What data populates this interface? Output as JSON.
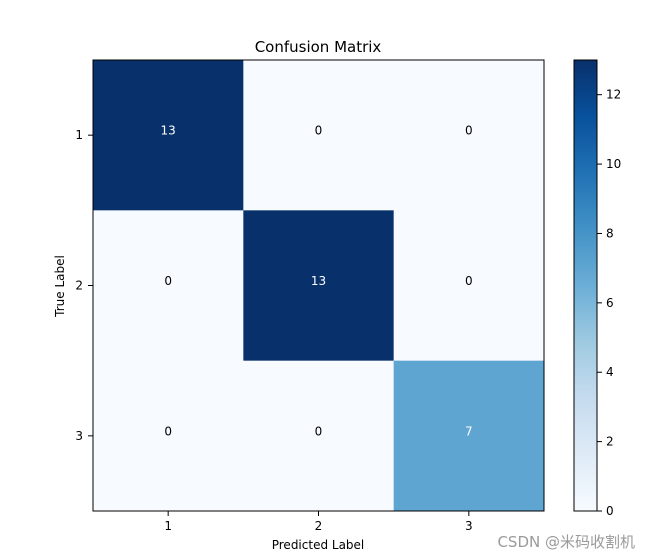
{
  "chart_data": {
    "type": "heatmap",
    "title": "Confusion Matrix",
    "xlabel": "Predicted Label",
    "ylabel": "True Label",
    "x_tick_labels": [
      "1",
      "2",
      "3"
    ],
    "y_tick_labels": [
      "1",
      "2",
      "3"
    ],
    "matrix": [
      [
        13,
        0,
        0
      ],
      [
        0,
        13,
        0
      ],
      [
        0,
        0,
        7
      ]
    ],
    "colormap": "Blues",
    "vmin": 0,
    "vmax": 13,
    "colorbar_ticks": [
      0,
      2,
      4,
      6,
      8,
      10,
      12
    ],
    "colorbar_tick_labels": [
      "0",
      "2",
      "4",
      "6",
      "8",
      "10",
      "12"
    ]
  },
  "watermark": "CSDN @米码收割机"
}
